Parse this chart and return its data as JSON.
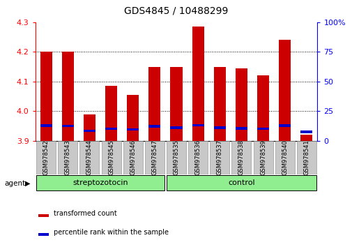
{
  "title": "GDS4845 / 10488299",
  "samples": [
    "GSM978542",
    "GSM978543",
    "GSM978544",
    "GSM978545",
    "GSM978546",
    "GSM978547",
    "GSM978535",
    "GSM978536",
    "GSM978537",
    "GSM978538",
    "GSM978539",
    "GSM978540",
    "GSM978541"
  ],
  "red_values": [
    4.2,
    4.2,
    3.99,
    4.085,
    4.055,
    4.15,
    4.15,
    4.285,
    4.15,
    4.145,
    4.12,
    4.24,
    3.92
  ],
  "blue_values": [
    3.951,
    3.95,
    3.933,
    3.94,
    3.938,
    3.949,
    3.944,
    3.953,
    3.944,
    3.942,
    3.94,
    3.951,
    3.93
  ],
  "ylim_left": [
    3.9,
    4.3
  ],
  "ylim_right": [
    0,
    100
  ],
  "right_ticks": [
    0,
    25,
    50,
    75,
    100
  ],
  "right_tick_labels": [
    "0",
    "25",
    "50",
    "75",
    "100%"
  ],
  "left_ticks": [
    3.9,
    4.0,
    4.1,
    4.2,
    4.3
  ],
  "bar_width": 0.55,
  "red_color": "#CC0000",
  "blue_color": "#0000CC",
  "legend_red": "transformed count",
  "legend_blue": "percentile rank within the sample",
  "title_fontsize": 10,
  "axis_fontsize": 8,
  "tick_label_fontsize": 6,
  "group_fontsize": 8,
  "legend_fontsize": 7
}
